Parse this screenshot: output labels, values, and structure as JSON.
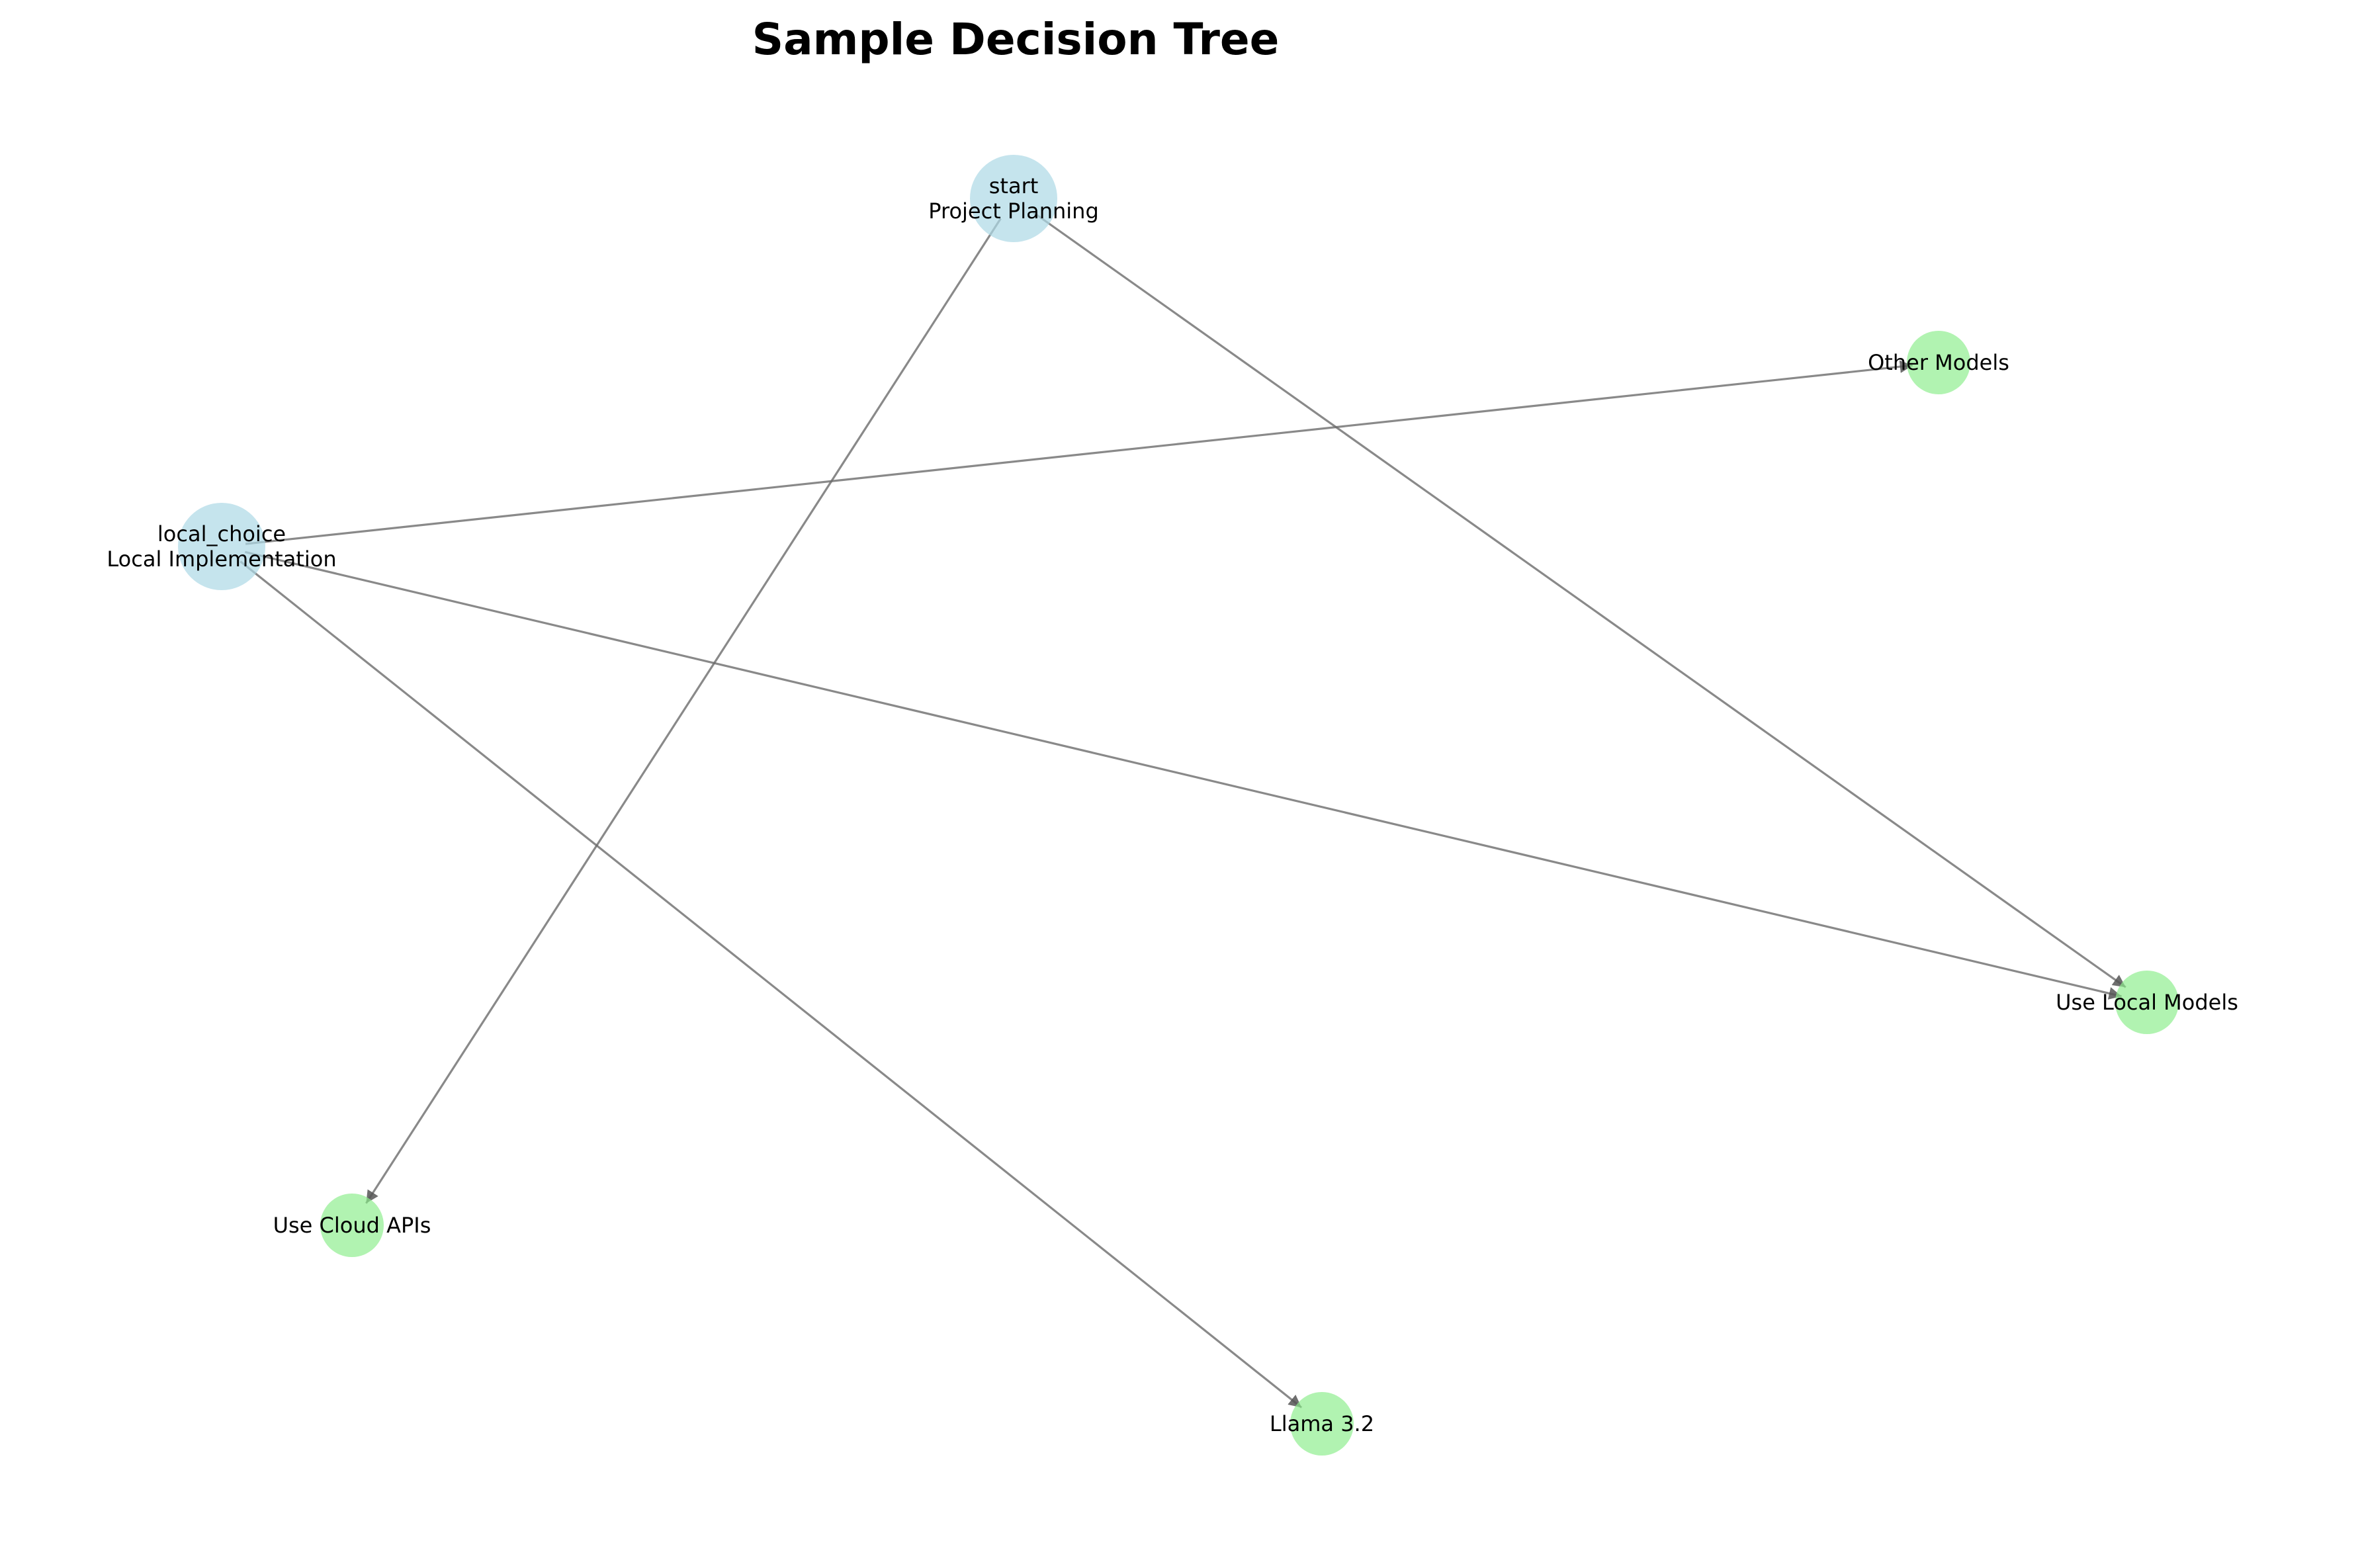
{
  "title": "Sample Decision Tree",
  "colors": {
    "decision_node": "#add8e6",
    "outcome_node": "#90ee90",
    "edge": "#555555"
  },
  "nodes": [
    {
      "id": "start",
      "type": "decision",
      "lines": [
        "start",
        "Project Planning"
      ]
    },
    {
      "id": "local_choice",
      "type": "decision",
      "lines": [
        "local_choice",
        "Local Implementation"
      ]
    },
    {
      "id": "other_models",
      "type": "outcome",
      "lines": [
        "Other Models"
      ]
    },
    {
      "id": "use_local",
      "type": "outcome",
      "lines": [
        "Use Local Models"
      ]
    },
    {
      "id": "use_cloud",
      "type": "outcome",
      "lines": [
        "Use Cloud APIs"
      ]
    },
    {
      "id": "llama",
      "type": "outcome",
      "lines": [
        "Llama 3.2"
      ]
    }
  ],
  "edges": [
    {
      "from": "start",
      "to": "use_cloud"
    },
    {
      "from": "start",
      "to": "use_local"
    },
    {
      "from": "local_choice",
      "to": "other_models"
    },
    {
      "from": "local_choice",
      "to": "use_local"
    },
    {
      "from": "local_choice",
      "to": "llama"
    }
  ]
}
